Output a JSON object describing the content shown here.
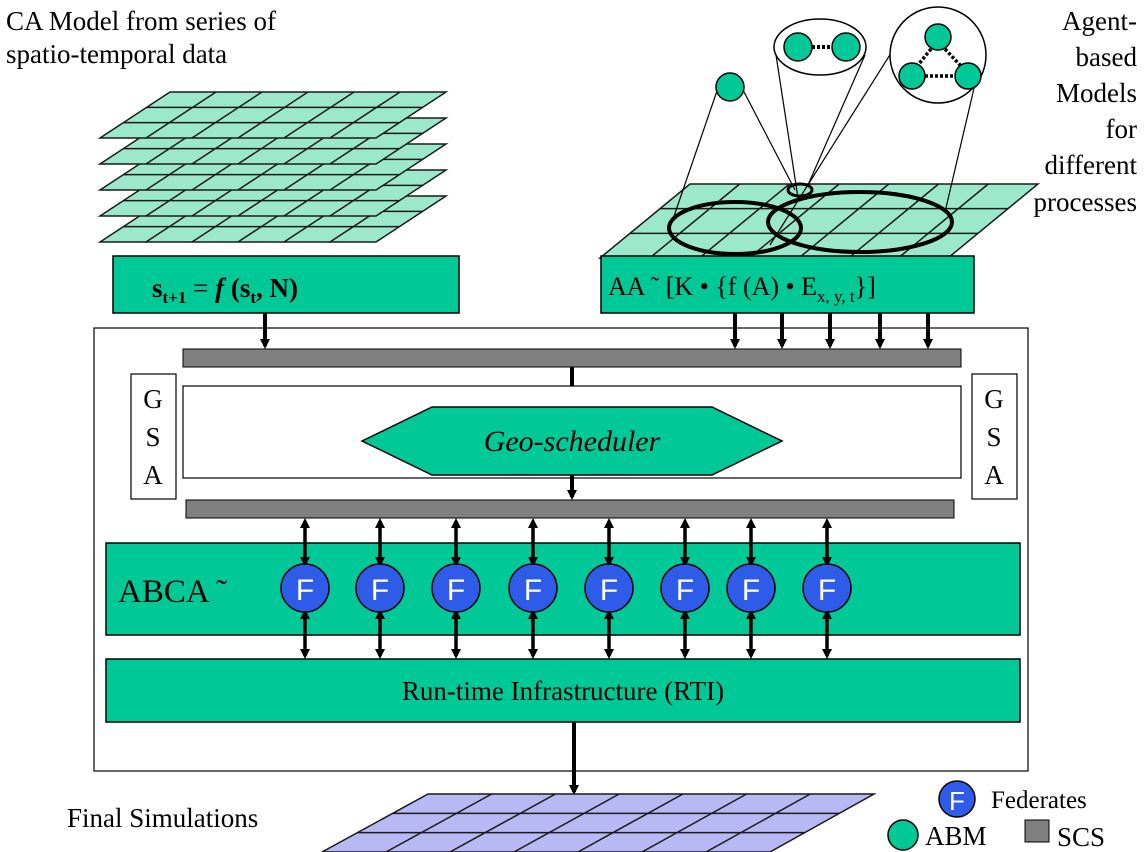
{
  "labels": {
    "ca_model_line1": "CA Model from series of",
    "ca_model_line2": "spatio-temporal data",
    "abm_title": [
      "Agent-",
      "based",
      "Models",
      "for",
      "different",
      "processes"
    ],
    "final_simulations": "Final Simulations"
  },
  "formulas": {
    "ca": {
      "s": "s",
      "sub_t1": "t+1",
      "eq": " = ",
      "f": "f",
      "open": " (s",
      "sub_t": "t",
      "rest": ", N)"
    },
    "aa": {
      "main": "AA ˜  [K • {f (A) • E",
      "sub": "x, y, t",
      "tail": "}]"
    }
  },
  "gsa": {
    "letters": [
      "G",
      "S",
      "A"
    ]
  },
  "scheduler": {
    "label": "Geo-scheduler"
  },
  "abca": {
    "label": "ABCA ˜",
    "federate_symbol": "F",
    "federate_count": 8
  },
  "rti": {
    "label": "Run-time Infrastructure (RTI)"
  },
  "legend": {
    "federates": "Federates",
    "abm": "ABM",
    "scs": "SCS",
    "federate_symbol": "F"
  },
  "colors": {
    "box_green": "#00C896",
    "sheet_green": "#9CE8CC",
    "sheet_purple": "#B8B8F4",
    "bus_gray": "#808080",
    "federate_blue": "#2E5BE8"
  }
}
